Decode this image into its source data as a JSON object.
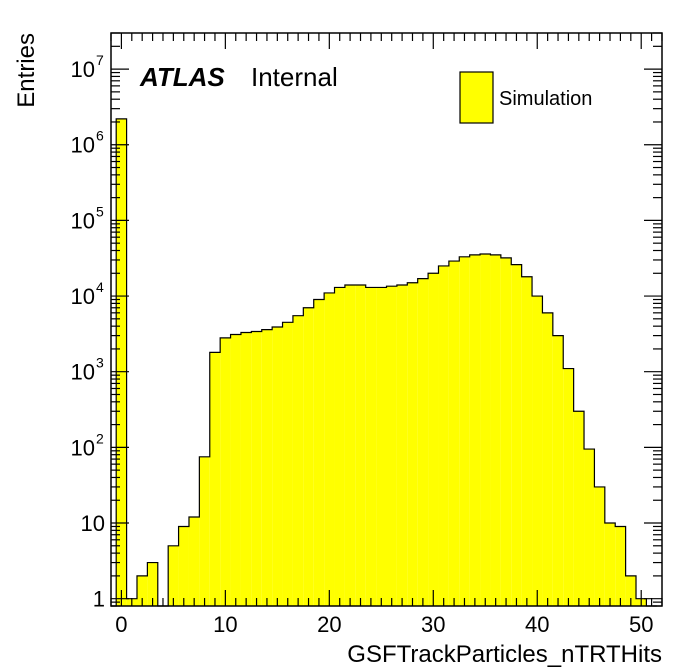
{
  "chart_data": {
    "type": "bar",
    "xlabel": "GSFTrackParticles_nTRTHits",
    "ylabel": "Entries",
    "xlim": [
      -1,
      52
    ],
    "ylim": [
      0.8,
      30000000
    ],
    "log_y": true,
    "bin_width": 1,
    "annotation_bold": "ATLAS",
    "annotation": "Internal",
    "legend": {
      "position": "top-right",
      "entries": [
        "Simulation"
      ]
    },
    "fill_color": "#ffff00",
    "x_ticks": [
      "0",
      "10",
      "20",
      "30",
      "40",
      "50"
    ],
    "y_ticks": [
      {
        "base": "1",
        "exp": ""
      },
      {
        "base": "10",
        "exp": ""
      },
      {
        "base": "10",
        "exp": "2"
      },
      {
        "base": "10",
        "exp": "3"
      },
      {
        "base": "10",
        "exp": "4"
      },
      {
        "base": "10",
        "exp": "5"
      },
      {
        "base": "10",
        "exp": "6"
      },
      {
        "base": "10",
        "exp": "7"
      }
    ],
    "series": [
      {
        "name": "Simulation",
        "x": [
          -1,
          0,
          1,
          2,
          3,
          4,
          5,
          6,
          7,
          8,
          9,
          10,
          11,
          12,
          13,
          14,
          15,
          16,
          17,
          18,
          19,
          20,
          21,
          22,
          23,
          24,
          25,
          26,
          27,
          28,
          29,
          30,
          31,
          32,
          33,
          34,
          35,
          36,
          37,
          38,
          39,
          40,
          41,
          42,
          43,
          44,
          45,
          46,
          47,
          48,
          49,
          50,
          51
        ],
        "values": [
          0,
          2200000,
          1,
          2,
          3,
          0,
          5,
          9,
          12,
          75,
          1800,
          2800,
          3100,
          3300,
          3400,
          3600,
          3900,
          4500,
          5500,
          7000,
          9000,
          11000,
          13000,
          14000,
          14000,
          13000,
          13000,
          13500,
          14000,
          15000,
          17000,
          20000,
          25000,
          29000,
          33000,
          35000,
          36000,
          35000,
          32000,
          26000,
          18000,
          10000,
          6000,
          3000,
          1100,
          300,
          95,
          30,
          10,
          9,
          2,
          1,
          0
        ]
      }
    ]
  }
}
